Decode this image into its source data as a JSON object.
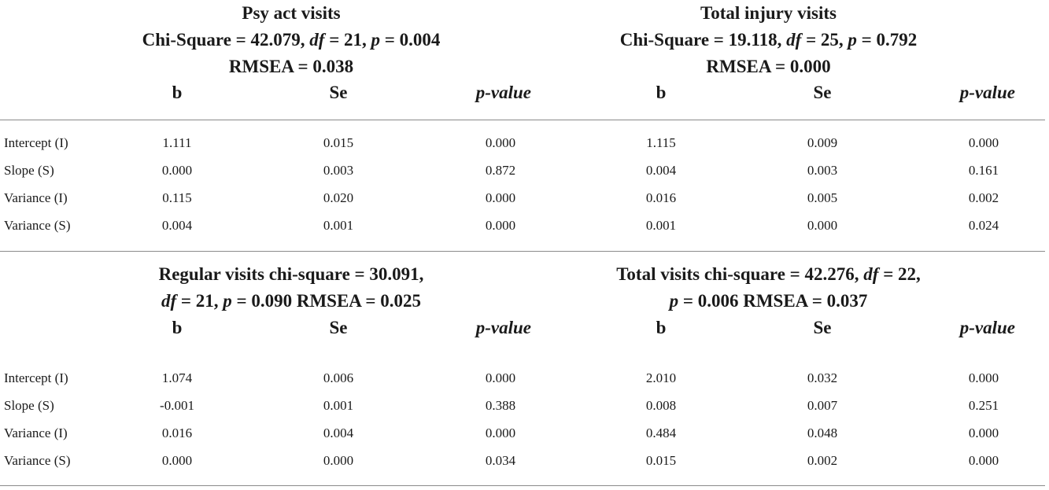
{
  "panels": {
    "psy": {
      "title_line1": "Psy act visits",
      "stats_chi": "Chi-Square = 42.079, ",
      "stats_df_label": "df",
      "stats_df_value": " = 21, ",
      "stats_p_label": "p",
      "stats_p_value": " = 0.004",
      "stats_rmsea": "RMSEA = 0.038"
    },
    "injury": {
      "title_line1": "Total injury visits",
      "stats_chi": "Chi-Square = 19.118, ",
      "stats_df_label": "df",
      "stats_df_value": " = 25, ",
      "stats_p_label": "p",
      "stats_p_value": " = 0.792",
      "stats_rmsea": "RMSEA = 0.000"
    },
    "regular": {
      "line1": "Regular visits chi-square = 30.091,",
      "df_label": "df",
      "df_value": " = 21, ",
      "p_label": "p",
      "p_value": " = 0.090 RMSEA = 0.025"
    },
    "total": {
      "line1_pre": "Total visits chi-square = 42.276, ",
      "df_label": "df",
      "df_value": " = 22,",
      "p_label": "p",
      "p_value": " = 0.006 RMSEA = 0.037"
    }
  },
  "columns": {
    "b": "b",
    "se": "Se",
    "pvalue": "p-value"
  },
  "top_rows": [
    {
      "label": "Intercept (I)",
      "b1": "1.111",
      "se1": "0.015",
      "p1": "0.000",
      "b2": "1.115",
      "se2": "0.009",
      "p2": "0.000"
    },
    {
      "label": "Slope (S)",
      "b1": "0.000",
      "se1": "0.003",
      "p1": "0.872",
      "b2": "0.004",
      "se2": "0.003",
      "p2": "0.161"
    },
    {
      "label": "Variance (I)",
      "b1": "0.115",
      "se1": "0.020",
      "p1": "0.000",
      "b2": "0.016",
      "se2": "0.005",
      "p2": "0.002"
    },
    {
      "label": "Variance (S)",
      "b1": "0.004",
      "se1": "0.001",
      "p1": "0.000",
      "b2": "0.001",
      "se2": "0.000",
      "p2": "0.024"
    }
  ],
  "bottom_rows": [
    {
      "label": "Intercept (I)",
      "b1": "1.074",
      "se1": "0.006",
      "p1": "0.000",
      "b2": "2.010",
      "se2": "0.032",
      "p2": "0.000"
    },
    {
      "label": "Slope (S)",
      "b1": "-0.001",
      "se1": "0.001",
      "p1": "0.388",
      "b2": "0.008",
      "se2": "0.007",
      "p2": "0.251"
    },
    {
      "label": "Variance (I)",
      "b1": "0.016",
      "se1": "0.004",
      "p1": "0.000",
      "b2": "0.484",
      "se2": "0.048",
      "p2": "0.000"
    },
    {
      "label": "Variance (S)",
      "b1": "0.000",
      "se1": "0.000",
      "p1": "0.034",
      "b2": "0.015",
      "se2": "0.002",
      "p2": "0.000"
    }
  ]
}
